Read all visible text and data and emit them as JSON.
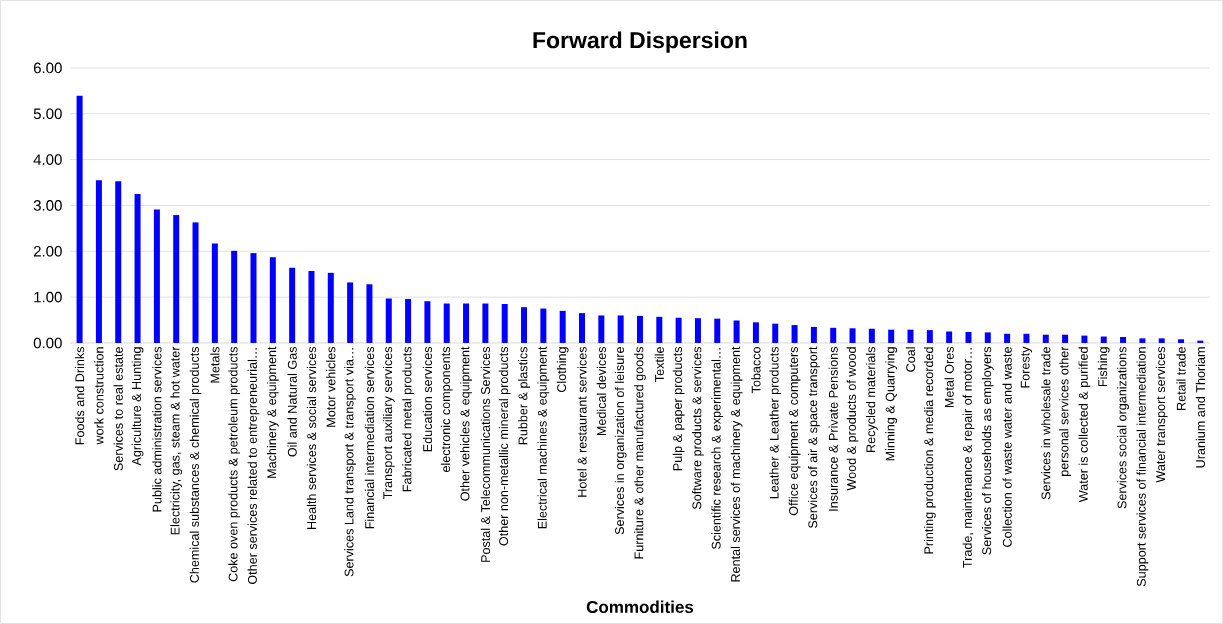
{
  "chart_data": {
    "type": "bar",
    "title": "Forward Dispersion",
    "xlabel": "Commodities",
    "categories": [
      "Foods and Drinks",
      "work construction",
      "Services to real estate",
      "Agriculture & Hunting",
      "Public administration services",
      "Electricity, gas, steam & hot water",
      "Chemical substances & chemical products",
      "Metals",
      "Coke oven products & petroleum products",
      "Other services related to entrepreneurial…",
      "Machinery & equipment",
      "Oil and Natural Gas",
      "Health services &  social services",
      "Motor vehicles",
      "Services Land transport  & transport via…",
      "Financial intermediation services",
      "Transport auxiliary services",
      "Fabricated metal products",
      "Education services",
      "electronic components",
      "Other vehicles & equipment",
      "Postal & Telecommunications Services",
      "Other non-metallic mineral products",
      "Rubber & plastics",
      "Electrical machines & equipment",
      "Clothing",
      "Hotel & restaurant services",
      "Medical devices",
      "Services in organization of leisure",
      "Furniture & other manufactured  goods",
      "Textile",
      "Pulp & paper products",
      "Software products & services",
      "Scientific research & experimental…",
      "Rental services of machinery & equipment",
      "Tobacco",
      "Leather & Leather products",
      "Office equipment & computers",
      "Services of air & space transport",
      "Insurance & Private Pensions",
      "Wood & products of wood",
      "Recycled materials",
      "Minning & Quarrying",
      "Coal",
      "Printing production & media  recorded",
      "Metal Ores",
      "Trade, maintenance & repair of motor…",
      "Services of households as employers",
      "Collection of waste water and waste",
      "Foresty",
      "Services in wholesale trade",
      "personal services other",
      "Water is collected & purified",
      "Fishing",
      "Services social organizations",
      "Support services of financial intermediation",
      "Water transport services",
      "Retail trade",
      "Uranium and Thoriam"
    ],
    "values": [
      5.39,
      3.55,
      3.53,
      3.25,
      2.91,
      2.79,
      2.63,
      2.17,
      2.01,
      1.96,
      1.87,
      1.64,
      1.57,
      1.53,
      1.32,
      1.28,
      0.97,
      0.96,
      0.91,
      0.86,
      0.86,
      0.86,
      0.85,
      0.78,
      0.75,
      0.7,
      0.65,
      0.6,
      0.6,
      0.59,
      0.57,
      0.55,
      0.54,
      0.53,
      0.49,
      0.45,
      0.42,
      0.39,
      0.35,
      0.33,
      0.32,
      0.31,
      0.29,
      0.29,
      0.28,
      0.25,
      0.24,
      0.23,
      0.2,
      0.2,
      0.18,
      0.18,
      0.16,
      0.14,
      0.13,
      0.1,
      0.1,
      0.08,
      0.05
    ],
    "color": "#0000ff",
    "ylim": [
      0,
      6
    ],
    "yticks": [
      {
        "value": 0,
        "label": "0.00"
      },
      {
        "value": 1,
        "label": "1.00"
      },
      {
        "value": 2,
        "label": "2.00"
      },
      {
        "value": 3,
        "label": "3.00"
      },
      {
        "value": 4,
        "label": "4.00"
      },
      {
        "value": 5,
        "label": "5.00"
      },
      {
        "value": 6,
        "label": "6.00"
      }
    ],
    "grid": "y"
  }
}
